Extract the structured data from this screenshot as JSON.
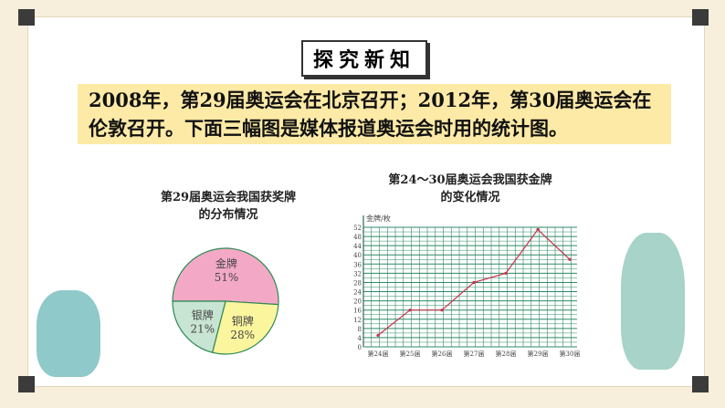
{
  "title": "探究新知",
  "intro": "2008年，第29届奥运会在北京召开；2012年，第30届奥运会在伦敦召开。下面三幅图是媒体报道奥运会时用的统计图。",
  "chart_data": [
    {
      "type": "pie",
      "title": "第29届奥运会我国获奖牌的分布情况",
      "slices": [
        {
          "label": "金牌",
          "value": 51,
          "display": "51%",
          "color": "#f3a9c6"
        },
        {
          "label": "铜牌",
          "value": 28,
          "display": "28%",
          "color": "#fbf59e"
        },
        {
          "label": "银牌",
          "value": 21,
          "display": "21%",
          "color": "#c8e4d2"
        }
      ]
    },
    {
      "type": "line",
      "title": "第24～30届奥运会我国获金牌的变化情况",
      "ylabel": "金牌/枚",
      "categories": [
        "第24届",
        "第25届",
        "第26届",
        "第27届",
        "第28届",
        "第29届",
        "第30届"
      ],
      "values": [
        5,
        16,
        16,
        28,
        32,
        51,
        38
      ],
      "ylim": [
        0,
        52
      ],
      "yticks": [
        0,
        4,
        8,
        12,
        16,
        20,
        24,
        28,
        32,
        36,
        40,
        44,
        48,
        52
      ],
      "grid": true,
      "line_color": "#c8324a",
      "grid_color": "#2e8a66"
    }
  ]
}
